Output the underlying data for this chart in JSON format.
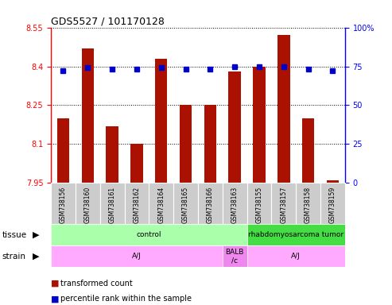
{
  "title": "GDS5527 / 101170128",
  "samples": [
    "GSM738156",
    "GSM738160",
    "GSM738161",
    "GSM738162",
    "GSM738164",
    "GSM738165",
    "GSM738166",
    "GSM738163",
    "GSM738155",
    "GSM738157",
    "GSM738158",
    "GSM738159"
  ],
  "bar_values": [
    8.2,
    8.47,
    8.17,
    8.1,
    8.43,
    8.25,
    8.25,
    8.38,
    8.4,
    8.52,
    8.2,
    7.96
  ],
  "dot_values": [
    72,
    74,
    73,
    73,
    74,
    73,
    73,
    75,
    75,
    75,
    73,
    72
  ],
  "ylim": [
    7.95,
    8.55
  ],
  "ylim2": [
    0,
    100
  ],
  "yticks": [
    7.95,
    8.1,
    8.25,
    8.4,
    8.55
  ],
  "yticks2": [
    0,
    25,
    50,
    75,
    100
  ],
  "bar_color": "#aa1100",
  "dot_color": "#0000cc",
  "tissue_control_color": "#aaffaa",
  "tissue_tumor_color": "#44dd44",
  "strain_aj_color": "#ffaaff",
  "strain_balb_color": "#ee88ee",
  "xticklabel_bg": "#cccccc",
  "tissue_labels": [
    {
      "text": "control",
      "start": 0,
      "end": 7
    },
    {
      "text": "rhabdomyosarcoma tumor",
      "start": 8,
      "end": 11
    }
  ],
  "strain_labels": [
    {
      "text": "A/J",
      "start": 0,
      "end": 6
    },
    {
      "text": "BALB\n/c",
      "start": 7,
      "end": 7
    },
    {
      "text": "A/J",
      "start": 8,
      "end": 11
    }
  ],
  "legend_bar": "transformed count",
  "legend_dot": "percentile rank within the sample"
}
